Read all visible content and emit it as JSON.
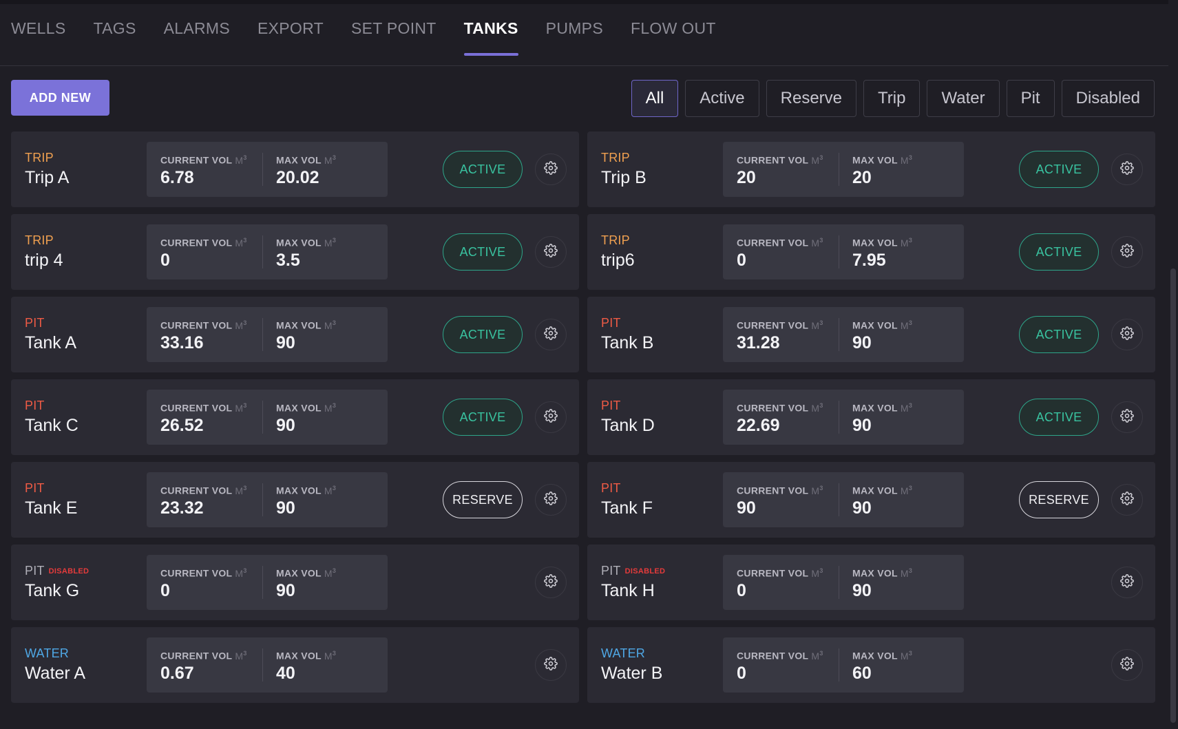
{
  "tabs": [
    {
      "label": "WELLS"
    },
    {
      "label": "TAGS"
    },
    {
      "label": "ALARMS"
    },
    {
      "label": "EXPORT"
    },
    {
      "label": "SET POINT"
    },
    {
      "label": "TANKS"
    },
    {
      "label": "PUMPS"
    },
    {
      "label": "FLOW OUT"
    }
  ],
  "active_tab": "TANKS",
  "toolbar": {
    "add_new_label": "ADD NEW"
  },
  "filters": [
    "All",
    "Active",
    "Reserve",
    "Trip",
    "Water",
    "Pit",
    "Disabled"
  ],
  "active_filter": "All",
  "labels": {
    "current_vol": "CURRENT VOL",
    "max_vol": "MAX VOL",
    "unit": "M",
    "unit_exp": "3",
    "disabled_tag": "DISABLED"
  },
  "colors": {
    "accent": "#7b72d9",
    "trip": "#f0a050",
    "pit": "#ef5b45",
    "water": "#4fa8e6",
    "active": "#39c3a0",
    "disabled": "#e53b3b"
  },
  "tanks": [
    {
      "type": "TRIP",
      "name": "Trip A",
      "current_vol": "6.78",
      "max_vol": "20.02",
      "status": "ACTIVE",
      "disabled": false
    },
    {
      "type": "TRIP",
      "name": "Trip B",
      "current_vol": "20",
      "max_vol": "20",
      "status": "ACTIVE",
      "disabled": false
    },
    {
      "type": "TRIP",
      "name": "trip 4",
      "current_vol": "0",
      "max_vol": "3.5",
      "status": "ACTIVE",
      "disabled": false
    },
    {
      "type": "TRIP",
      "name": "trip6",
      "current_vol": "0",
      "max_vol": "7.95",
      "status": "ACTIVE",
      "disabled": false
    },
    {
      "type": "PIT",
      "name": "Tank A",
      "current_vol": "33.16",
      "max_vol": "90",
      "status": "ACTIVE",
      "disabled": false
    },
    {
      "type": "PIT",
      "name": "Tank B",
      "current_vol": "31.28",
      "max_vol": "90",
      "status": "ACTIVE",
      "disabled": false
    },
    {
      "type": "PIT",
      "name": "Tank C",
      "current_vol": "26.52",
      "max_vol": "90",
      "status": "ACTIVE",
      "disabled": false
    },
    {
      "type": "PIT",
      "name": "Tank D",
      "current_vol": "22.69",
      "max_vol": "90",
      "status": "ACTIVE",
      "disabled": false
    },
    {
      "type": "PIT",
      "name": "Tank E",
      "current_vol": "23.32",
      "max_vol": "90",
      "status": "RESERVE",
      "disabled": false
    },
    {
      "type": "PIT",
      "name": "Tank F",
      "current_vol": "90",
      "max_vol": "90",
      "status": "RESERVE",
      "disabled": false
    },
    {
      "type": "PIT",
      "name": "Tank G",
      "current_vol": "0",
      "max_vol": "90",
      "status": "",
      "disabled": true
    },
    {
      "type": "PIT",
      "name": "Tank H",
      "current_vol": "0",
      "max_vol": "90",
      "status": "",
      "disabled": true
    },
    {
      "type": "WATER",
      "name": "Water A",
      "current_vol": "0.67",
      "max_vol": "40",
      "status": "",
      "disabled": false
    },
    {
      "type": "WATER",
      "name": "Water B",
      "current_vol": "0",
      "max_vol": "60",
      "status": "",
      "disabled": false
    }
  ]
}
